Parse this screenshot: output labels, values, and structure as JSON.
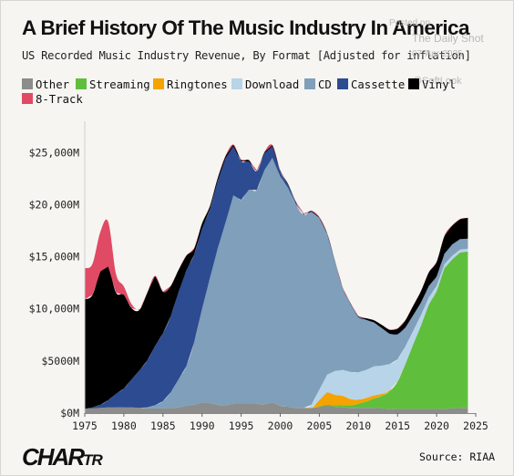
{
  "watermark": [
    "Posted on",
    "The Daily Shot",
    "07-Apr-2025",
    "@SoftLook"
  ],
  "logo": {
    "main": "CHAR",
    "tail": "TR"
  },
  "source": "Source: RIAA",
  "chart_data": {
    "type": "area",
    "stacked": true,
    "title": "A Brief History Of The Music Industry In America",
    "subtitle": "US Recorded Music Industry Revenue, By Format [Adjusted for inflation]",
    "xlabel": "",
    "ylabel": "",
    "xlim": [
      1975,
      2025
    ],
    "ylim": [
      0,
      28000
    ],
    "x_ticks": [
      1975,
      1980,
      1985,
      1990,
      1995,
      2000,
      2005,
      2010,
      2015,
      2020,
      2025
    ],
    "y_ticks": [
      0,
      5000,
      10000,
      15000,
      20000,
      25000
    ],
    "y_tick_labels": [
      "$0M",
      "$5000M",
      "$10,000M",
      "$15,000M",
      "$20,000M",
      "$25,000M"
    ],
    "grid": false,
    "legend_position": "top",
    "x": [
      1973,
      1974,
      1975,
      1976,
      1977,
      1978,
      1979,
      1980,
      1981,
      1982,
      1983,
      1984,
      1985,
      1986,
      1987,
      1988,
      1989,
      1990,
      1991,
      1992,
      1993,
      1994,
      1995,
      1996,
      1997,
      1998,
      1999,
      2000,
      2001,
      2002,
      2003,
      2004,
      2005,
      2006,
      2007,
      2008,
      2009,
      2010,
      2011,
      2012,
      2013,
      2014,
      2015,
      2016,
      2017,
      2018,
      2019,
      2020,
      2021,
      2022,
      2023,
      2024
    ],
    "series": [
      {
        "name": "Other",
        "color": "#8c8c8c",
        "values": [
          250,
          300,
          400,
          450,
          500,
          550,
          550,
          550,
          550,
          500,
          450,
          450,
          450,
          500,
          550,
          700,
          800,
          1000,
          950,
          800,
          750,
          900,
          950,
          950,
          900,
          850,
          1000,
          700,
          600,
          500,
          500,
          500,
          600,
          700,
          600,
          550,
          500,
          500,
          500,
          500,
          450,
          400,
          400,
          400,
          400,
          400,
          400,
          400,
          400,
          450,
          500,
          500
        ]
      },
      {
        "name": "Streaming",
        "color": "#5fbf3c",
        "values": [
          0,
          0,
          0,
          0,
          0,
          0,
          0,
          0,
          0,
          0,
          0,
          0,
          0,
          0,
          0,
          0,
          0,
          0,
          0,
          0,
          0,
          0,
          0,
          0,
          0,
          0,
          0,
          0,
          0,
          0,
          0,
          0,
          50,
          100,
          150,
          200,
          250,
          400,
          600,
          900,
          1200,
          1700,
          2600,
          4300,
          6200,
          8000,
          10000,
          11300,
          13500,
          14300,
          14900,
          15000
        ]
      },
      {
        "name": "Ringtones",
        "color": "#f4a300",
        "values": [
          0,
          0,
          0,
          0,
          0,
          0,
          0,
          0,
          0,
          0,
          0,
          0,
          0,
          0,
          0,
          0,
          0,
          0,
          0,
          0,
          0,
          0,
          0,
          0,
          0,
          0,
          0,
          0,
          0,
          0,
          0,
          0,
          600,
          1200,
          1000,
          900,
          600,
          400,
          350,
          300,
          200,
          100,
          50,
          0,
          0,
          0,
          0,
          0,
          0,
          0,
          0,
          0
        ]
      },
      {
        "name": "Download",
        "color": "#b7d4e8",
        "values": [
          0,
          0,
          0,
          0,
          0,
          0,
          0,
          0,
          0,
          0,
          0,
          0,
          0,
          0,
          0,
          0,
          0,
          0,
          0,
          0,
          0,
          0,
          0,
          0,
          0,
          0,
          0,
          0,
          0,
          0,
          0,
          300,
          1000,
          1700,
          2300,
          2500,
          2600,
          2600,
          2700,
          2800,
          2700,
          2500,
          2100,
          1700,
          1300,
          1000,
          700,
          500,
          400,
          350,
          300,
          280
        ]
      },
      {
        "name": "CD",
        "color": "#7f9fba",
        "values": [
          0,
          0,
          0,
          0,
          0,
          0,
          0,
          0,
          0,
          0,
          100,
          300,
          700,
          1500,
          2700,
          3800,
          6000,
          9000,
          12000,
          15000,
          17500,
          20000,
          19500,
          20500,
          20500,
          22500,
          23500,
          22000,
          21000,
          19500,
          18500,
          18500,
          16500,
          13500,
          10500,
          7800,
          6500,
          5300,
          4800,
          4200,
          3600,
          2900,
          2400,
          1800,
          1500,
          1200,
          1100,
          900,
          1000,
          1100,
          1000,
          950
        ]
      },
      {
        "name": "Cassette",
        "color": "#2d4b91",
        "values": [
          0,
          0,
          0,
          100,
          300,
          700,
          1300,
          1800,
          2700,
          3600,
          4500,
          5700,
          6500,
          7300,
          8400,
          9200,
          8400,
          7700,
          6600,
          6500,
          6200,
          4700,
          3700,
          2700,
          1800,
          1600,
          1100,
          500,
          300,
          200,
          100,
          50,
          0,
          0,
          0,
          0,
          0,
          0,
          0,
          0,
          0,
          0,
          0,
          0,
          0,
          0,
          0,
          0,
          0,
          0,
          0,
          0
        ]
      },
      {
        "name": "Vinyl",
        "color": "#000000",
        "values": [
          13000,
          10500,
          10500,
          10800,
          12800,
          12800,
          9700,
          9000,
          6800,
          5800,
          6500,
          6700,
          4000,
          2900,
          2100,
          1400,
          600,
          500,
          300,
          250,
          200,
          150,
          150,
          120,
          100,
          100,
          100,
          80,
          80,
          70,
          60,
          50,
          40,
          40,
          50,
          60,
          80,
          100,
          150,
          200,
          300,
          400,
          550,
          700,
          900,
          1100,
          1300,
          1400,
          1700,
          1800,
          1900,
          2000
        ]
      },
      {
        "name": "8-Track",
        "color": "#e04a64",
        "values": [
          3000,
          3200,
          3000,
          3000,
          3800,
          4300,
          1800,
          800,
          400,
          100,
          0,
          0,
          0,
          0,
          0,
          0,
          0,
          0,
          0,
          0,
          0,
          0,
          0,
          0,
          0,
          0,
          0,
          0,
          0,
          0,
          0,
          0,
          0,
          0,
          0,
          0,
          0,
          0,
          0,
          0,
          0,
          0,
          0,
          0,
          0,
          0,
          0,
          0,
          0,
          0,
          0,
          0
        ]
      }
    ]
  }
}
